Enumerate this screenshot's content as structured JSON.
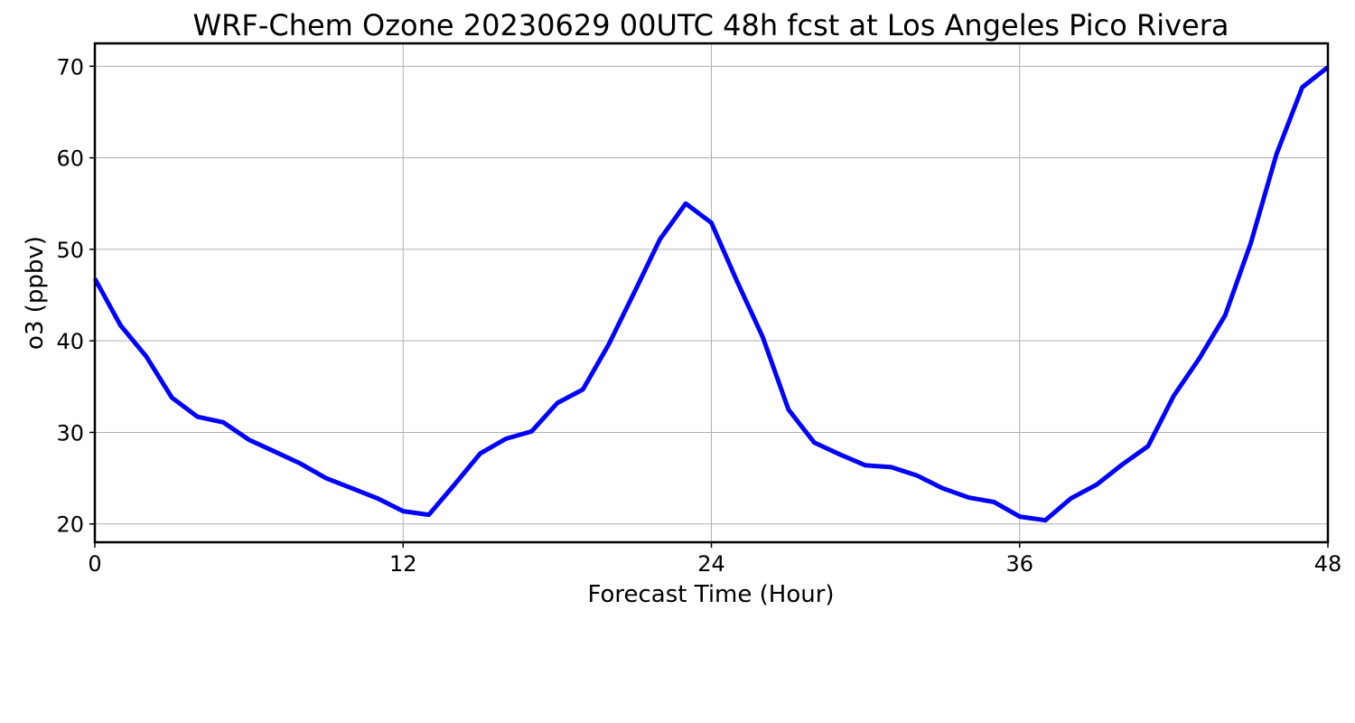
{
  "chart_data": {
    "type": "line",
    "title": "WRF-Chem Ozone  20230629 00UTC 48h fcst at Los Angeles Pico Rivera",
    "xlabel": "Forecast Time (Hour)",
    "ylabel": "o3  (ppbv)",
    "xlim": [
      0,
      48
    ],
    "ylim": [
      18,
      72.5
    ],
    "xticks": [
      0,
      12,
      24,
      36,
      48
    ],
    "yticks": [
      20,
      30,
      40,
      50,
      60,
      70
    ],
    "grid": true,
    "legend": "none",
    "series": [
      {
        "color": "#0000ff",
        "x": [
          0,
          1,
          2,
          3,
          4,
          5,
          6,
          7,
          8,
          9,
          10,
          11,
          12,
          13,
          14,
          15,
          16,
          17,
          18,
          19,
          20,
          21,
          22,
          23,
          24,
          25,
          26,
          27,
          28,
          29,
          30,
          31,
          32,
          33,
          34,
          35,
          36,
          37,
          38,
          39,
          40,
          41,
          42,
          43,
          44,
          45,
          46,
          47,
          48
        ],
        "y": [
          46.8,
          41.7,
          38.3,
          33.8,
          31.7,
          31.1,
          29.2,
          27.9,
          26.6,
          25.0,
          23.9,
          22.8,
          21.4,
          21.0,
          24.3,
          27.7,
          29.3,
          30.1,
          33.2,
          34.7,
          39.6,
          45.3,
          51.1,
          55.0,
          52.9,
          46.5,
          40.4,
          32.5,
          28.9,
          27.6,
          26.4,
          26.2,
          25.3,
          23.9,
          22.9,
          22.4,
          20.8,
          20.4,
          22.8,
          24.3,
          26.5,
          28.5,
          34.0,
          38.1,
          42.8,
          50.7,
          60.4,
          67.7,
          69.9
        ]
      }
    ]
  }
}
